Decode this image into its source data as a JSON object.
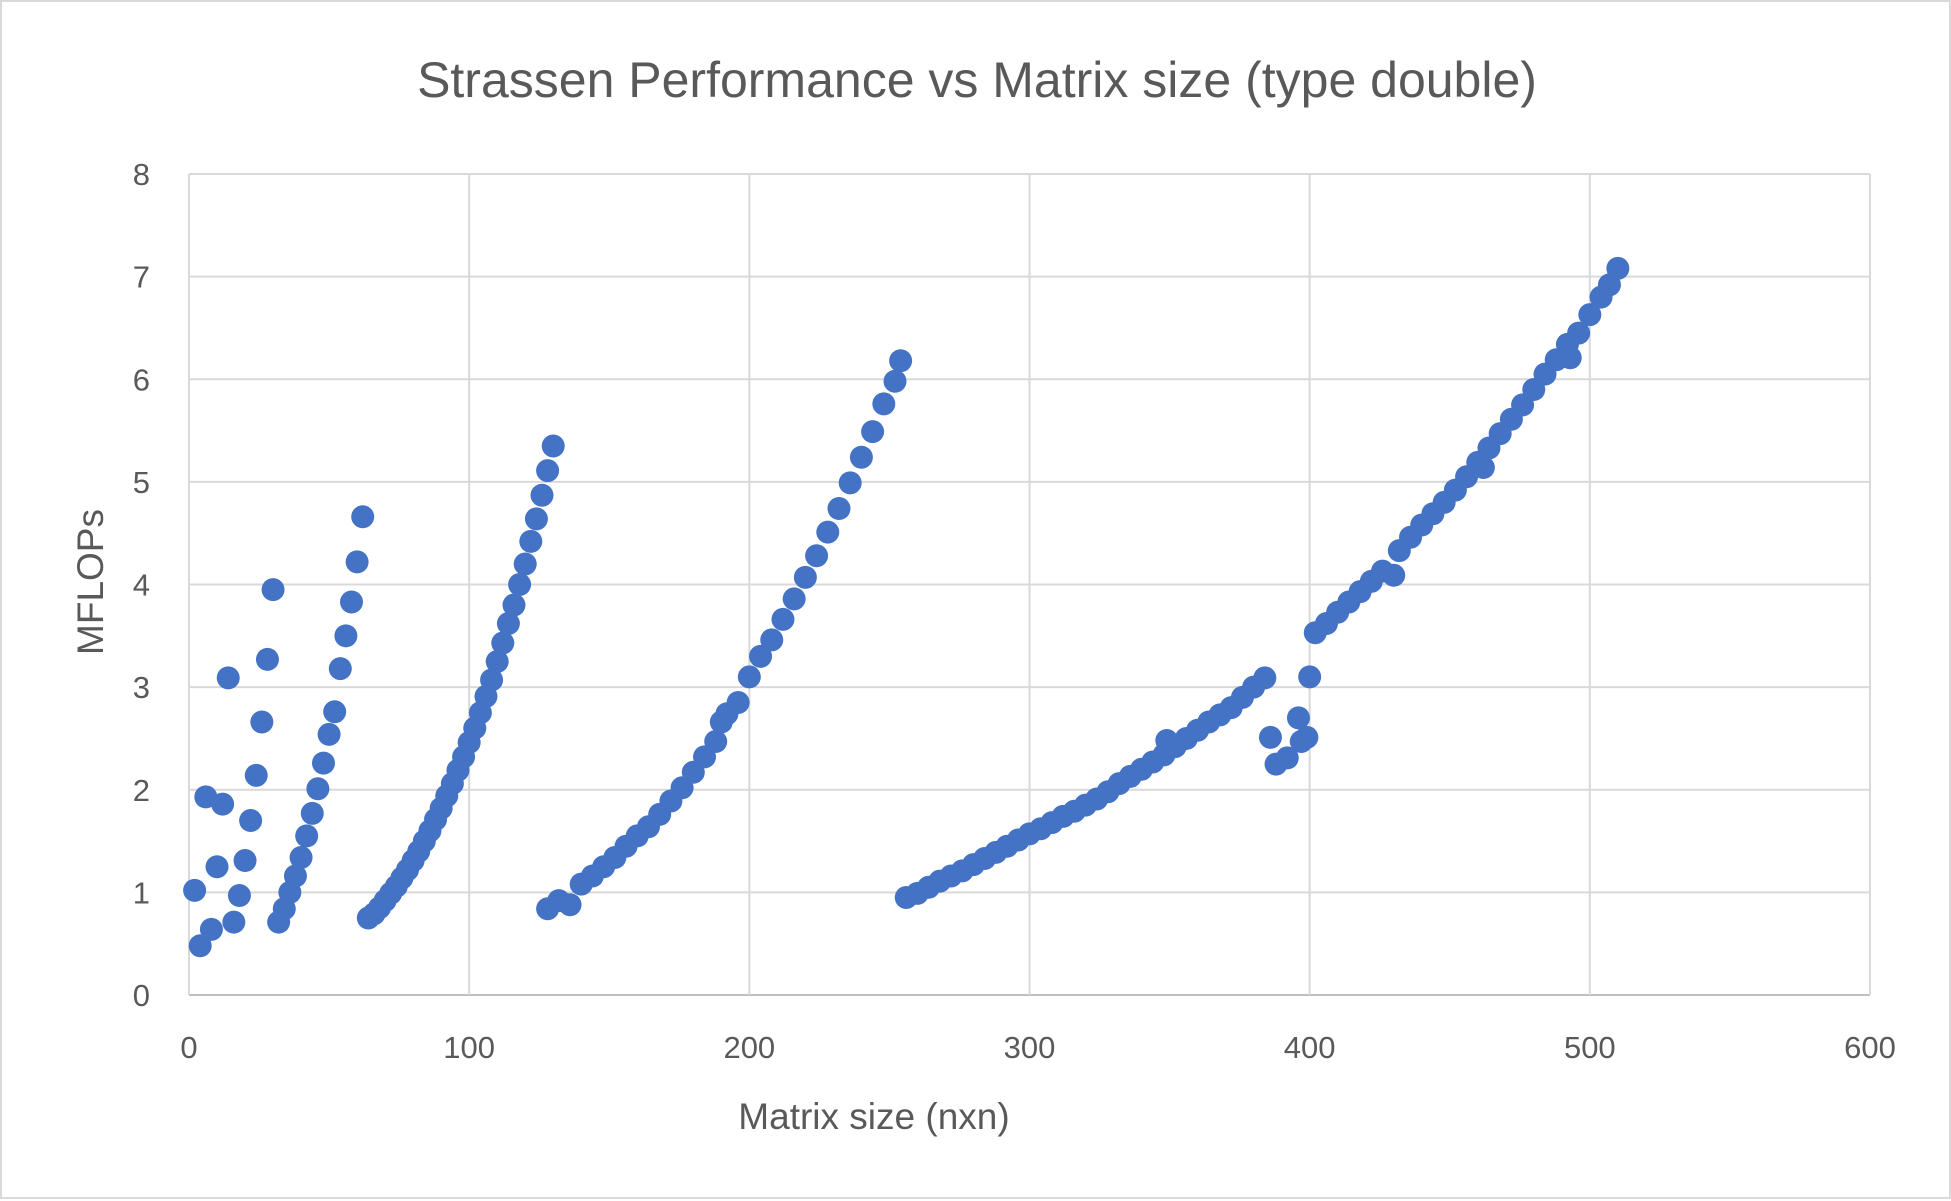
{
  "chart_data": {
    "type": "scatter",
    "title": "Strassen Performance vs Matrix size (type double)",
    "xlabel": "Matrix size (nxn)",
    "ylabel": "MFLOPs",
    "xlim": [
      0,
      600
    ],
    "ylim": [
      0,
      8
    ],
    "xticks": [
      "0",
      "100",
      "200",
      "300",
      "400",
      "500",
      "600"
    ],
    "yticks": [
      "0",
      "1",
      "2",
      "3",
      "4",
      "5",
      "6",
      "7",
      "8"
    ],
    "grid": true,
    "legend": "none",
    "marker_color": "#4472C4",
    "series": [
      {
        "points": [
          [
            2,
            1.02
          ],
          [
            4,
            0.48
          ],
          [
            6,
            1.93
          ],
          [
            8,
            0.64
          ],
          [
            10,
            1.25
          ],
          [
            12,
            1.86
          ],
          [
            14,
            3.09
          ],
          [
            16,
            0.71
          ],
          [
            18,
            0.97
          ],
          [
            20,
            1.31
          ],
          [
            22,
            1.7
          ],
          [
            24,
            2.14
          ],
          [
            26,
            2.66
          ],
          [
            28,
            3.27
          ],
          [
            30,
            3.95
          ],
          [
            32,
            0.71
          ],
          [
            34,
            0.84
          ],
          [
            36,
            1.0
          ],
          [
            38,
            1.16
          ],
          [
            40,
            1.34
          ],
          [
            42,
            1.55
          ],
          [
            44,
            1.77
          ],
          [
            46,
            2.01
          ],
          [
            48,
            2.26
          ],
          [
            50,
            2.54
          ],
          [
            52,
            2.76
          ],
          [
            54,
            3.18
          ],
          [
            56,
            3.5
          ],
          [
            58,
            3.83
          ],
          [
            60,
            4.22
          ],
          [
            62,
            4.66
          ],
          [
            64,
            0.75
          ],
          [
            66,
            0.79
          ],
          [
            68,
            0.85
          ],
          [
            70,
            0.92
          ],
          [
            72,
            0.99
          ],
          [
            74,
            1.06
          ],
          [
            76,
            1.14
          ],
          [
            78,
            1.22
          ],
          [
            80,
            1.31
          ],
          [
            82,
            1.4
          ],
          [
            84,
            1.5
          ],
          [
            86,
            1.6
          ],
          [
            88,
            1.71
          ],
          [
            90,
            1.82
          ],
          [
            92,
            1.94
          ],
          [
            94,
            2.06
          ],
          [
            96,
            2.19
          ],
          [
            98,
            2.32
          ],
          [
            100,
            2.46
          ],
          [
            102,
            2.6
          ],
          [
            104,
            2.75
          ],
          [
            106,
            2.91
          ],
          [
            108,
            3.07
          ],
          [
            110,
            3.25
          ],
          [
            112,
            3.43
          ],
          [
            114,
            3.62
          ],
          [
            116,
            3.8
          ],
          [
            118,
            4.0
          ],
          [
            120,
            4.2
          ],
          [
            122,
            4.42
          ],
          [
            124,
            4.64
          ],
          [
            126,
            4.87
          ],
          [
            128,
            5.11
          ],
          [
            130,
            5.35
          ],
          [
            128,
            0.84
          ],
          [
            132,
            0.92
          ],
          [
            136,
            0.88
          ],
          [
            140,
            1.08
          ],
          [
            144,
            1.16
          ],
          [
            148,
            1.25
          ],
          [
            152,
            1.34
          ],
          [
            156,
            1.45
          ],
          [
            160,
            1.55
          ],
          [
            164,
            1.64
          ],
          [
            168,
            1.76
          ],
          [
            172,
            1.89
          ],
          [
            176,
            2.02
          ],
          [
            180,
            2.17
          ],
          [
            184,
            2.32
          ],
          [
            188,
            2.47
          ],
          [
            190,
            2.66
          ],
          [
            192,
            2.74
          ],
          [
            196,
            2.85
          ],
          [
            200,
            3.1
          ],
          [
            204,
            3.3
          ],
          [
            208,
            3.46
          ],
          [
            212,
            3.66
          ],
          [
            216,
            3.86
          ],
          [
            220,
            4.07
          ],
          [
            224,
            4.28
          ],
          [
            228,
            4.51
          ],
          [
            232,
            4.74
          ],
          [
            236,
            4.99
          ],
          [
            240,
            5.24
          ],
          [
            244,
            5.49
          ],
          [
            248,
            5.76
          ],
          [
            252,
            5.98
          ],
          [
            254,
            6.18
          ],
          [
            256,
            0.95
          ],
          [
            260,
            0.99
          ],
          [
            264,
            1.05
          ],
          [
            268,
            1.11
          ],
          [
            272,
            1.16
          ],
          [
            276,
            1.21
          ],
          [
            280,
            1.27
          ],
          [
            284,
            1.33
          ],
          [
            288,
            1.39
          ],
          [
            292,
            1.45
          ],
          [
            296,
            1.51
          ],
          [
            300,
            1.57
          ],
          [
            304,
            1.62
          ],
          [
            308,
            1.68
          ],
          [
            312,
            1.74
          ],
          [
            316,
            1.79
          ],
          [
            320,
            1.85
          ],
          [
            324,
            1.91
          ],
          [
            328,
            1.98
          ],
          [
            332,
            2.06
          ],
          [
            336,
            2.13
          ],
          [
            340,
            2.2
          ],
          [
            344,
            2.27
          ],
          [
            348,
            2.34
          ],
          [
            349,
            2.48
          ],
          [
            352,
            2.42
          ],
          [
            356,
            2.5
          ],
          [
            360,
            2.58
          ],
          [
            364,
            2.66
          ],
          [
            368,
            2.73
          ],
          [
            372,
            2.8
          ],
          [
            376,
            2.9
          ],
          [
            380,
            3.0
          ],
          [
            384,
            3.09
          ],
          [
            386,
            2.51
          ],
          [
            388,
            2.25
          ],
          [
            392,
            2.31
          ],
          [
            396,
            2.7
          ],
          [
            397,
            2.47
          ],
          [
            399,
            2.51
          ],
          [
            400,
            3.1
          ],
          [
            402,
            3.53
          ],
          [
            406,
            3.62
          ],
          [
            410,
            3.73
          ],
          [
            414,
            3.83
          ],
          [
            418,
            3.93
          ],
          [
            422,
            4.03
          ],
          [
            426,
            4.13
          ],
          [
            430,
            4.09
          ],
          [
            432,
            4.33
          ],
          [
            436,
            4.46
          ],
          [
            440,
            4.58
          ],
          [
            444,
            4.69
          ],
          [
            448,
            4.8
          ],
          [
            452,
            4.92
          ],
          [
            456,
            5.05
          ],
          [
            460,
            5.19
          ],
          [
            462,
            5.14
          ],
          [
            464,
            5.33
          ],
          [
            468,
            5.47
          ],
          [
            472,
            5.61
          ],
          [
            476,
            5.75
          ],
          [
            480,
            5.9
          ],
          [
            484,
            6.05
          ],
          [
            488,
            6.19
          ],
          [
            492,
            6.34
          ],
          [
            493,
            6.21
          ],
          [
            496,
            6.45
          ],
          [
            500,
            6.63
          ],
          [
            504,
            6.8
          ],
          [
            507,
            6.92
          ],
          [
            510,
            7.08
          ]
        ]
      }
    ]
  }
}
